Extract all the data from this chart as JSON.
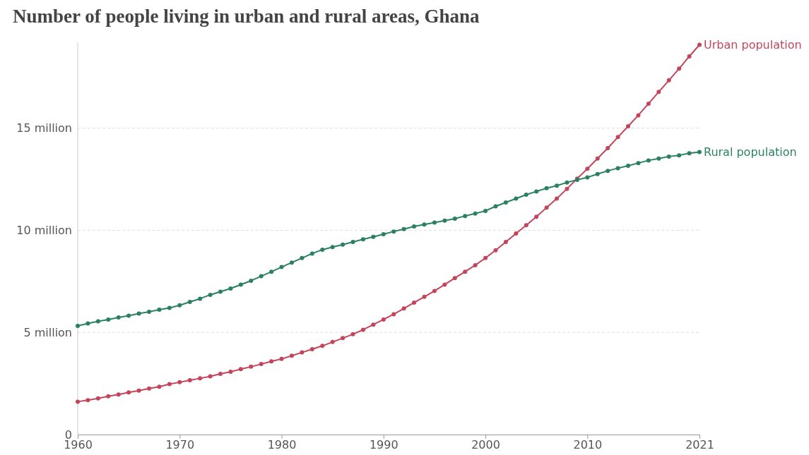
{
  "chart_data": {
    "type": "line",
    "title": "Number of people living in urban and rural areas, Ghana",
    "x": [
      1960,
      1961,
      1962,
      1963,
      1964,
      1965,
      1966,
      1967,
      1968,
      1969,
      1970,
      1971,
      1972,
      1973,
      1974,
      1975,
      1976,
      1977,
      1978,
      1979,
      1980,
      1981,
      1982,
      1983,
      1984,
      1985,
      1986,
      1987,
      1988,
      1989,
      1990,
      1991,
      1992,
      1993,
      1994,
      1995,
      1996,
      1997,
      1998,
      1999,
      2000,
      2001,
      2002,
      2003,
      2004,
      2005,
      2006,
      2007,
      2008,
      2009,
      2010,
      2011,
      2012,
      2013,
      2014,
      2015,
      2016,
      2017,
      2018,
      2019,
      2020,
      2021
    ],
    "series": [
      {
        "name": "Urban population",
        "color": "#c4455b",
        "values": [
          1.61,
          1.68,
          1.77,
          1.87,
          1.96,
          2.06,
          2.15,
          2.25,
          2.34,
          2.47,
          2.56,
          2.66,
          2.75,
          2.85,
          2.97,
          3.07,
          3.2,
          3.32,
          3.45,
          3.58,
          3.7,
          3.86,
          4.02,
          4.18,
          4.34,
          4.53,
          4.72,
          4.91,
          5.13,
          5.38,
          5.63,
          5.89,
          6.17,
          6.46,
          6.74,
          7.03,
          7.34,
          7.66,
          7.97,
          8.29,
          8.64,
          9.02,
          9.43,
          9.84,
          10.25,
          10.66,
          11.11,
          11.55,
          12.03,
          12.53,
          13.01,
          13.51,
          14.02,
          14.56,
          15.09,
          15.63,
          16.2,
          16.77,
          17.34,
          17.91,
          18.51,
          19.08
        ]
      },
      {
        "name": "Rural population",
        "color": "#2a8060",
        "values": [
          5.32,
          5.44,
          5.54,
          5.63,
          5.73,
          5.82,
          5.92,
          6.01,
          6.11,
          6.2,
          6.33,
          6.49,
          6.65,
          6.84,
          6.99,
          7.15,
          7.34,
          7.53,
          7.75,
          7.97,
          8.2,
          8.42,
          8.64,
          8.86,
          9.05,
          9.18,
          9.3,
          9.43,
          9.56,
          9.68,
          9.81,
          9.94,
          10.06,
          10.19,
          10.28,
          10.38,
          10.47,
          10.57,
          10.7,
          10.82,
          10.95,
          11.17,
          11.36,
          11.55,
          11.74,
          11.9,
          12.06,
          12.18,
          12.34,
          12.47,
          12.59,
          12.75,
          12.91,
          13.04,
          13.16,
          13.29,
          13.42,
          13.51,
          13.61,
          13.67,
          13.77,
          13.83
        ]
      }
    ],
    "xlim": [
      1960,
      2021
    ],
    "xticks": [
      1960,
      1970,
      1980,
      1990,
      2000,
      2010,
      2021
    ],
    "ylim": [
      0,
      19.2
    ],
    "yticks": [
      0,
      {
        "value": 5,
        "label": "5 million"
      },
      {
        "value": 10,
        "label": "10 million"
      },
      {
        "value": 15,
        "label": "15 million"
      }
    ],
    "grid": "y",
    "legend": "right",
    "marker": "circle",
    "line_style": "solid"
  }
}
